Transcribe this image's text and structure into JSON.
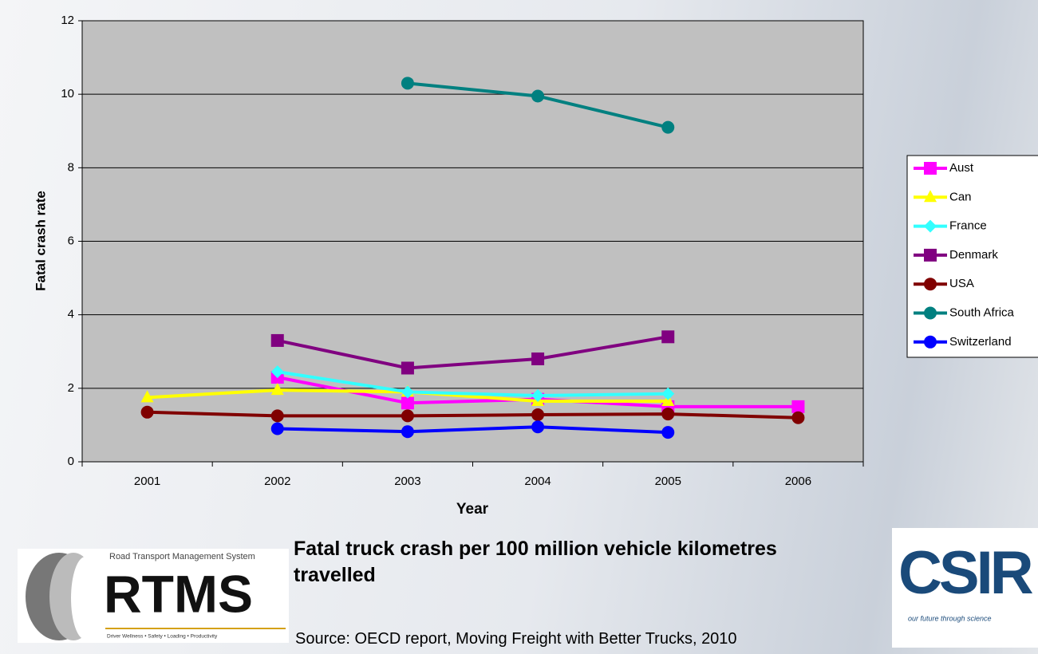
{
  "chart_data": {
    "type": "line",
    "categories": [
      "2001",
      "2002",
      "2003",
      "2004",
      "2005",
      "2006"
    ],
    "series": [
      {
        "name": "Aust",
        "color": "#ff00ff",
        "marker": "square",
        "values": [
          null,
          2.3,
          1.6,
          1.7,
          1.5,
          1.5
        ]
      },
      {
        "name": "Can",
        "color": "#ffff00",
        "marker": "triangle",
        "values": [
          1.75,
          1.95,
          1.9,
          1.65,
          1.65,
          null
        ]
      },
      {
        "name": "France",
        "color": "#33ffff",
        "marker": "diamond",
        "values": [
          null,
          2.45,
          1.9,
          1.8,
          1.85,
          null
        ]
      },
      {
        "name": "Denmark",
        "color": "#800080",
        "marker": "square",
        "values": [
          null,
          3.3,
          2.55,
          2.8,
          3.4,
          null
        ]
      },
      {
        "name": "USA",
        "color": "#800000",
        "marker": "circle",
        "values": [
          1.35,
          1.25,
          1.25,
          1.28,
          1.3,
          1.2
        ]
      },
      {
        "name": "South Africa",
        "color": "#008080",
        "marker": "circle",
        "values": [
          null,
          null,
          10.3,
          9.95,
          9.1,
          null
        ]
      },
      {
        "name": "Switzerland",
        "color": "#0000ff",
        "marker": "circle",
        "values": [
          null,
          0.9,
          0.82,
          0.95,
          0.8,
          null
        ]
      }
    ],
    "ylim": [
      0,
      12
    ],
    "yticks": [
      0,
      2,
      4,
      6,
      8,
      10,
      12
    ],
    "grid": true,
    "ylabel": "Fatal crash rate",
    "xlabel": "Year",
    "legend": "right"
  },
  "caption": {
    "title": "Fatal truck crash per 100 million vehicle kilometres travelled",
    "source": "Source: OECD report, Moving Freight with Better Trucks, 2010"
  },
  "logos": {
    "rtms": {
      "subtitle": "Road Transport Management System",
      "name": "RTMS",
      "tagline": "Driver Wellness • Safety • Loading • Productivity"
    },
    "csir": {
      "name": "CSIR",
      "tagline": "our future through science"
    }
  }
}
